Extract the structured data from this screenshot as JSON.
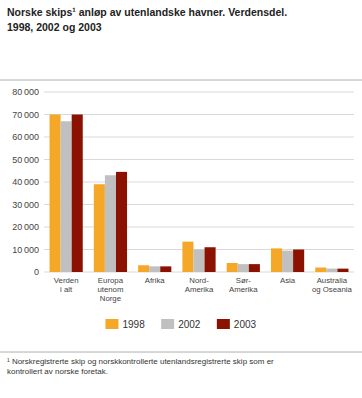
{
  "chart_data": {
    "type": "bar",
    "title": "Norske skips¹ anløp av utenlandske havner. Verdensdel.",
    "subtitle": "1998, 2002 og 2003",
    "categories": [
      "Verden\ni alt",
      "Europa\nutenom\nNorge",
      "Afrika",
      "Nord-\nAmerika",
      "Sør-\nAmerika",
      "Asia",
      "Australia\nog Oseania"
    ],
    "series": [
      {
        "name": "1998",
        "color": "#F5A828",
        "values": [
          70000,
          39000,
          3000,
          13500,
          4000,
          10500,
          2000
        ]
      },
      {
        "name": "2002",
        "color": "#C0C0C0",
        "values": [
          67000,
          43000,
          2500,
          10000,
          3500,
          9500,
          1500
        ]
      },
      {
        "name": "2003",
        "color": "#8B1100",
        "values": [
          70000,
          44500,
          2500,
          11000,
          3500,
          10000,
          1500
        ]
      }
    ],
    "ylim": [
      0,
      80000
    ],
    "yticks": [
      0,
      {
        "value": 10000,
        "label": "10 000"
      },
      {
        "value": 20000,
        "label": "20 000"
      },
      {
        "value": 30000,
        "label": "30 000"
      },
      {
        "value": 40000,
        "label": "40 000"
      },
      {
        "value": 50000,
        "label": "50 000"
      },
      {
        "value": 60000,
        "label": "60 000"
      },
      {
        "value": 70000,
        "label": "70 000"
      },
      {
        "value": 80000,
        "label": "80 000"
      }
    ],
    "grid": true,
    "legend": "bottom",
    "annotations": [
      "¹ Norskregistrerte skip og norskkontrollerte utenlandsregistrerte skip som er\nkontrollert av norske foretak."
    ]
  }
}
